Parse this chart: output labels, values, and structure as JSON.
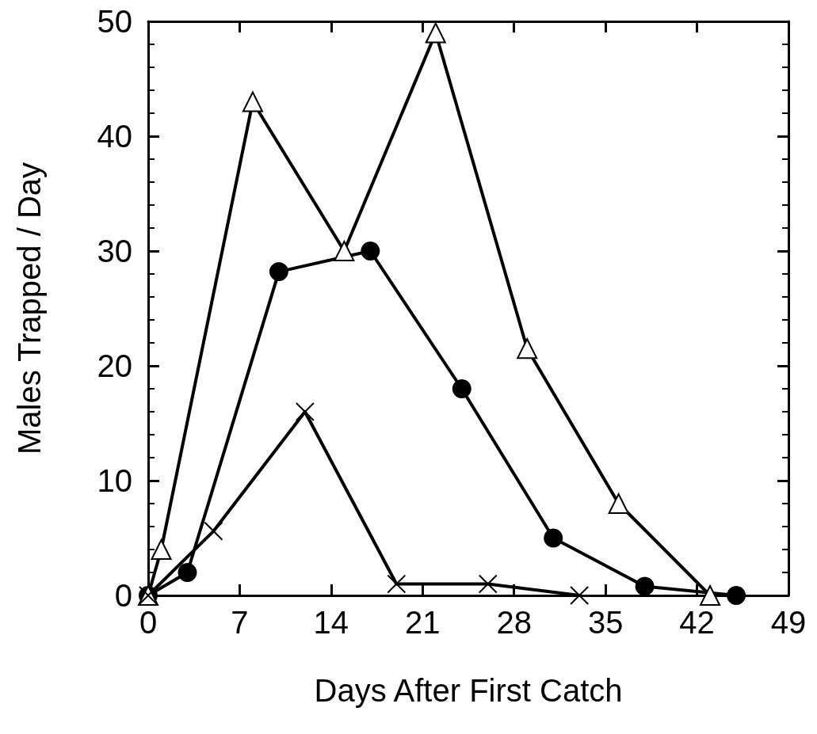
{
  "chart_data": {
    "type": "line",
    "xlabel": "Days After First Catch",
    "ylabel": "Males Trapped / Day",
    "xlim": [
      0,
      49
    ],
    "xticks": [
      0,
      7,
      14,
      21,
      28,
      35,
      42,
      49
    ],
    "ylim": [
      0,
      50
    ],
    "yticks": [
      0,
      10,
      20,
      30,
      40,
      50
    ],
    "grid": false,
    "line_style": "solid",
    "series": [
      {
        "color": "#000000",
        "marker": "circle",
        "x": [
          0,
          3,
          10,
          17,
          24,
          31,
          38,
          45
        ],
        "values": [
          0,
          2,
          28.2,
          30,
          18,
          5,
          0.8,
          0
        ]
      },
      {
        "color": "#000000",
        "marker": "triangle",
        "x": [
          0,
          1,
          8,
          15,
          22,
          29,
          36,
          43
        ],
        "values": [
          0,
          4,
          43,
          30,
          49,
          21.5,
          8,
          0
        ]
      },
      {
        "color": "#000000",
        "marker": "cross",
        "x": [
          0,
          5,
          12,
          19,
          26,
          33
        ],
        "values": [
          0,
          5.6,
          16,
          1,
          1,
          0
        ]
      }
    ]
  }
}
